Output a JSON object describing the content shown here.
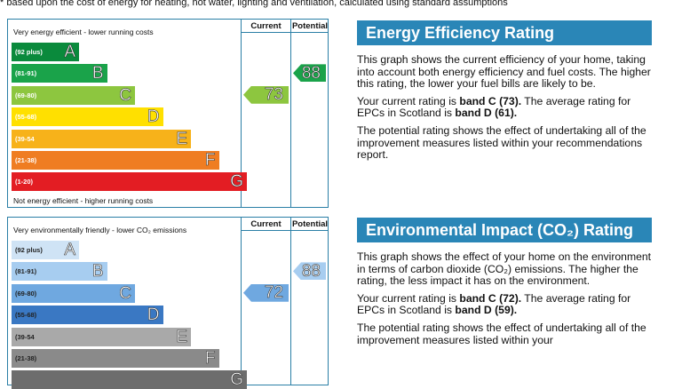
{
  "footnote": "* based upon the cost of energy for heating, hot water, lighting and ventilation, calculated using standard assumptions",
  "energy_chart": {
    "col_current": "Current",
    "col_potential": "Potential",
    "top_caption": "Very energy efficient - lower running costs",
    "bottom_caption": "Not energy efficient - higher running costs",
    "bands": [
      {
        "range": "(92 plus)",
        "letter": "A",
        "color": "#0a8a3c"
      },
      {
        "range": "(81-91)",
        "letter": "B",
        "color": "#1aa34a"
      },
      {
        "range": "(69-80)",
        "letter": "C",
        "color": "#8dc63f"
      },
      {
        "range": "(55-68)",
        "letter": "D",
        "color": "#ffe000"
      },
      {
        "range": "(39-54",
        "letter": "E",
        "color": "#f7b21a"
      },
      {
        "range": "(21-38)",
        "letter": "F",
        "color": "#ef7d22"
      },
      {
        "range": "(1-20)",
        "letter": "G",
        "color": "#e31d23"
      }
    ],
    "current": {
      "value": "73",
      "band": "C",
      "color": "#8dc63f"
    },
    "potential": {
      "value": "88",
      "band": "B",
      "color": "#1aa34a"
    }
  },
  "env_chart": {
    "col_current": "Current",
    "col_potential": "Potential",
    "top_caption": "Very environmentally friendly - lower CO₂ emissions",
    "bands": [
      {
        "range": "(92 plus)",
        "letter": "A",
        "color": "#cfe3f5"
      },
      {
        "range": "(81-91)",
        "letter": "B",
        "color": "#a7cdf0"
      },
      {
        "range": "(69-80)",
        "letter": "C",
        "color": "#6fa8e0"
      },
      {
        "range": "(55-68)",
        "letter": "D",
        "color": "#3a78c3"
      },
      {
        "range": "(39-54",
        "letter": "E",
        "color": "#a9a9a9"
      },
      {
        "range": "(21-38)",
        "letter": "F",
        "color": "#8a8a8a"
      },
      {
        "range": "",
        "letter": "G",
        "color": "#6d6d6d"
      }
    ],
    "current": {
      "value": "72",
      "band": "C",
      "color": "#6fa8e0"
    },
    "potential": {
      "value": "88",
      "band": "B",
      "color": "#a7cdf0"
    }
  },
  "energy_panel": {
    "heading": "Energy Efficiency Rating",
    "p1": "This graph shows the current efficiency of your home, taking into account both energy efficiency and fuel costs. The higher this rating, the lower your fuel bills are likely to be.",
    "p2_pre": "Your current rating is ",
    "p2_bold1": "band C (73).",
    "p2_mid": " The average rating for EPCs in Scotland is ",
    "p2_bold2": "band D (61).",
    "p3": "The potential rating shows the effect of undertaking all of the improvement measures listed within your recommendations report."
  },
  "env_panel": {
    "heading": "Environmental Impact (CO₂) Rating",
    "p1": "This graph shows the effect of your home on the environment in terms of carbon dioxide (CO₂) emissions. The higher the rating, the less impact it has on the environment.",
    "p2_pre": "Your current rating is ",
    "p2_bold1": "band C (72).",
    "p2_mid": " The average rating for EPCs in Scotland is ",
    "p2_bold2": "band D (59).",
    "p3": "The potential rating shows the effect of undertaking all of the improvement measures listed within your"
  }
}
